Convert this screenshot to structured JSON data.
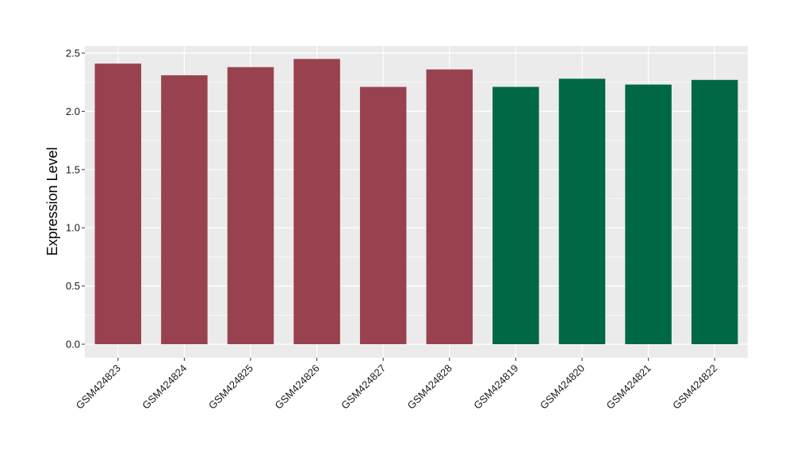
{
  "chart_data": {
    "type": "bar",
    "title": "",
    "xlabel": "",
    "ylabel": "Expression Level",
    "ylim": [
      0,
      2.5
    ],
    "yticks": [
      "0.0",
      "0.5",
      "1.0",
      "1.5",
      "2.0",
      "2.5"
    ],
    "categories": [
      "GSM424823",
      "GSM424824",
      "GSM424825",
      "GSM424826",
      "GSM424827",
      "GSM424828",
      "GSM424819",
      "GSM424820",
      "GSM424821",
      "GSM424822"
    ],
    "values": [
      2.41,
      2.31,
      2.38,
      2.45,
      2.21,
      2.36,
      2.21,
      2.28,
      2.23,
      2.27
    ],
    "bar_colors": [
      "#99424f",
      "#99424f",
      "#99424f",
      "#99424f",
      "#99424f",
      "#99424f",
      "#006845",
      "#006845",
      "#006845",
      "#006845"
    ],
    "panel_background": "#ebebeb",
    "grid_color": "#ffffff",
    "grid": true,
    "legend": "none"
  }
}
